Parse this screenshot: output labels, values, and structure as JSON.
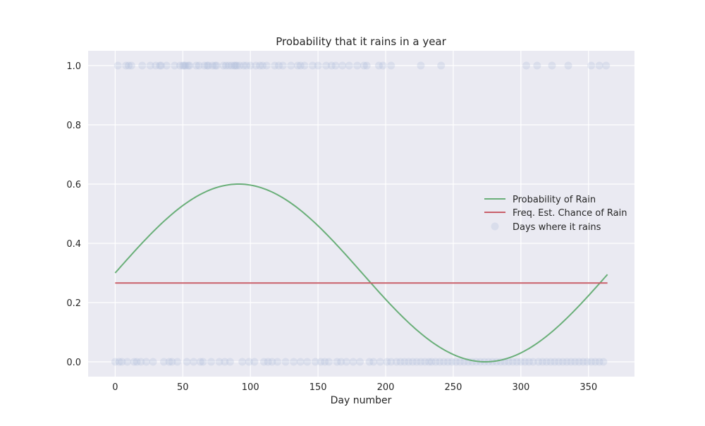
{
  "chart_data": {
    "type": "line",
    "title": "Probability that it rains in a year",
    "xlabel": "Day number",
    "ylabel": "",
    "xlim": [
      -20,
      384
    ],
    "ylim": [
      -0.05,
      1.05
    ],
    "xticks": [
      0,
      50,
      100,
      150,
      200,
      250,
      300,
      350
    ],
    "yticks": [
      0.0,
      0.2,
      0.4,
      0.6,
      0.8,
      1.0
    ],
    "xtick_labels": [
      "0",
      "50",
      "100",
      "150",
      "200",
      "250",
      "300",
      "350"
    ],
    "ytick_labels": [
      "0.0",
      "0.2",
      "0.4",
      "0.6",
      "0.8",
      "1.0"
    ],
    "grid": true,
    "legend_position": "center-right",
    "colors": {
      "background": "#eaeaf2",
      "grid": "#ffffff",
      "probability_line": "#6aaf79",
      "freq_line": "#c95f6a",
      "points": "#a9b6d8"
    },
    "series": [
      {
        "name": "Probability of Rain",
        "kind": "line",
        "formula": "0.3 + 0.3*sin(2*pi*day/365)",
        "x": [
          0,
          15,
          30,
          45,
          60,
          75,
          91,
          105,
          120,
          135,
          150,
          165,
          180,
          195,
          210,
          225,
          240,
          255,
          274,
          285,
          300,
          315,
          330,
          345,
          364
        ],
        "y": [
          0.3,
          0.376,
          0.449,
          0.512,
          0.562,
          0.586,
          0.6,
          0.591,
          0.571,
          0.532,
          0.478,
          0.415,
          0.34,
          0.265,
          0.192,
          0.125,
          0.066,
          0.023,
          0.0,
          0.006,
          0.043,
          0.095,
          0.16,
          0.234,
          0.295
        ]
      },
      {
        "name": "Freq. Est. Chance of Rain",
        "kind": "line",
        "x": [
          0,
          364
        ],
        "y": [
          0.266,
          0.266
        ]
      },
      {
        "name": "Days where it rains",
        "kind": "scatter",
        "x": [
          2,
          8,
          10,
          12,
          20,
          26,
          30,
          33,
          34,
          38,
          44,
          48,
          50,
          51,
          52,
          54,
          55,
          60,
          62,
          66,
          68,
          69,
          72,
          74,
          75,
          80,
          82,
          84,
          86,
          88,
          89,
          90,
          92,
          95,
          97,
          100,
          104,
          107,
          109,
          112,
          118,
          121,
          124,
          130,
          135,
          137,
          140,
          146,
          150,
          156,
          160,
          163,
          168,
          173,
          179,
          184,
          186,
          195,
          198,
          204,
          226,
          241,
          304,
          312,
          323,
          335,
          352,
          358,
          363,
          0,
          3,
          5,
          9,
          14,
          16,
          19,
          23,
          28,
          36,
          40,
          42,
          46,
          53,
          58,
          63,
          65,
          71,
          77,
          81,
          85,
          94,
          99,
          103,
          110,
          113,
          116,
          120,
          126,
          132,
          137,
          142,
          148,
          152,
          155,
          158,
          164,
          167,
          171,
          176,
          181,
          188,
          191,
          196,
          201,
          204,
          208,
          211,
          214,
          217,
          220,
          223,
          226,
          229,
          232,
          234,
          237,
          240,
          243,
          246,
          249,
          252,
          255,
          258,
          261,
          264,
          267,
          270,
          273,
          276,
          279,
          282,
          285,
          288,
          291,
          294,
          297,
          300,
          303,
          306,
          309,
          313,
          316,
          319,
          322,
          325,
          328,
          331,
          334,
          337,
          340,
          343,
          346,
          349,
          352,
          355,
          358,
          361
        ],
        "y": [
          1,
          1,
          1,
          1,
          1,
          1,
          1,
          1,
          1,
          1,
          1,
          1,
          1,
          1,
          1,
          1,
          1,
          1,
          1,
          1,
          1,
          1,
          1,
          1,
          1,
          1,
          1,
          1,
          1,
          1,
          1,
          1,
          1,
          1,
          1,
          1,
          1,
          1,
          1,
          1,
          1,
          1,
          1,
          1,
          1,
          1,
          1,
          1,
          1,
          1,
          1,
          1,
          1,
          1,
          1,
          1,
          1,
          1,
          1,
          1,
          1,
          1,
          1,
          1,
          1,
          1,
          1,
          1,
          1,
          0,
          0,
          0,
          0,
          0,
          0,
          0,
          0,
          0,
          0,
          0,
          0,
          0,
          0,
          0,
          0,
          0,
          0,
          0,
          0,
          0,
          0,
          0,
          0,
          0,
          0,
          0,
          0,
          0,
          0,
          0,
          0,
          0,
          0,
          0,
          0,
          0,
          0,
          0,
          0,
          0,
          0,
          0,
          0,
          0,
          0,
          0,
          0,
          0,
          0,
          0,
          0,
          0,
          0,
          0,
          0,
          0,
          0,
          0,
          0,
          0,
          0,
          0,
          0,
          0,
          0,
          0,
          0,
          0,
          0,
          0,
          0,
          0,
          0,
          0,
          0,
          0,
          0,
          0,
          0,
          0,
          0,
          0,
          0,
          0,
          0,
          0,
          0,
          0,
          0,
          0,
          0,
          0,
          0,
          0,
          0,
          0,
          0
        ]
      }
    ]
  }
}
